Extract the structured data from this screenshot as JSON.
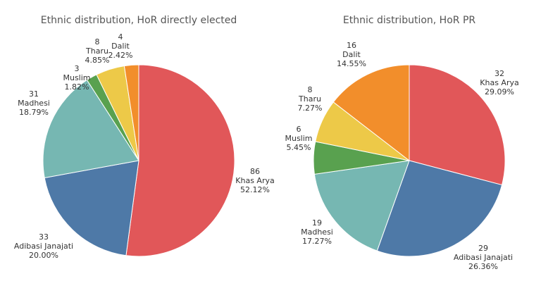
{
  "chart_data": [
    {
      "type": "pie",
      "title": "Ethnic distribution, HoR directly elected",
      "slices": [
        {
          "name": "Khas Arya",
          "value": 86,
          "percent": "52.12%",
          "color": "#e15759"
        },
        {
          "name": "Adibasi Janajati",
          "value": 33,
          "percent": "20.00%",
          "color": "#4e79a7"
        },
        {
          "name": "Madhesi",
          "value": 31,
          "percent": "18.79%",
          "color": "#76b7b2"
        },
        {
          "name": "Muslim",
          "value": 3,
          "percent": "1.82%",
          "color": "#59a14f"
        },
        {
          "name": "Tharu",
          "value": 8,
          "percent": "4.85%",
          "color": "#edc948"
        },
        {
          "name": "Dalit",
          "value": 4,
          "percent": "2.42%",
          "color": "#f28e2b"
        }
      ]
    },
    {
      "type": "pie",
      "title": "Ethnic distribution, HoR PR",
      "slices": [
        {
          "name": "Khas Arya",
          "value": 32,
          "percent": "29.09%",
          "color": "#e15759"
        },
        {
          "name": "Adibasi Janajati",
          "value": 29,
          "percent": "26.36%",
          "color": "#4e79a7"
        },
        {
          "name": "Madhesi",
          "value": 19,
          "percent": "17.27%",
          "color": "#76b7b2"
        },
        {
          "name": "Muslim",
          "value": 6,
          "percent": "5.45%",
          "color": "#59a14f"
        },
        {
          "name": "Tharu",
          "value": 8,
          "percent": "7.27%",
          "color": "#edc948"
        },
        {
          "name": "Dalit",
          "value": 16,
          "percent": "14.55%",
          "color": "#f28e2b"
        }
      ]
    }
  ]
}
